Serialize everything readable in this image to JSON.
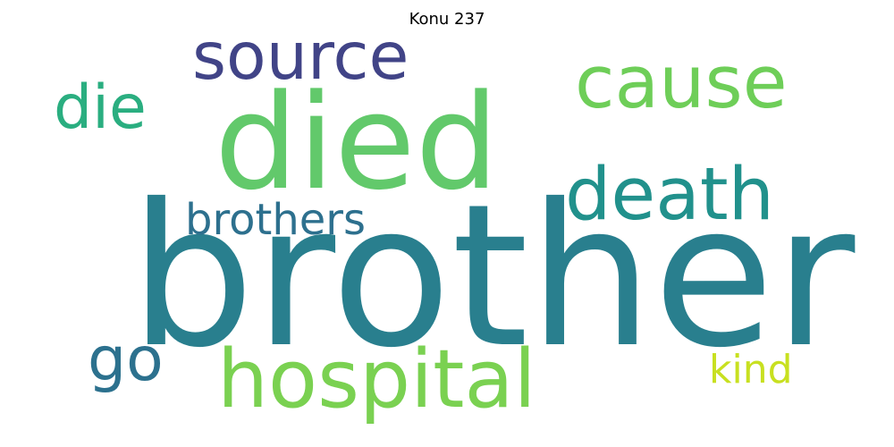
{
  "chart_data": {
    "type": "wordcloud",
    "title": "Konu 237",
    "words": [
      {
        "text": "brother",
        "weight": 1.0,
        "color": "#297f8e"
      },
      {
        "text": "died",
        "weight": 0.67,
        "color": "#62c96b"
      },
      {
        "text": "hospital",
        "weight": 0.41,
        "color": "#7ad151"
      },
      {
        "text": "death",
        "weight": 0.37,
        "color": "#21918c"
      },
      {
        "text": "cause",
        "weight": 0.37,
        "color": "#6ece58"
      },
      {
        "text": "source",
        "weight": 0.33,
        "color": "#414487"
      },
      {
        "text": "die",
        "weight": 0.31,
        "color": "#2aae80"
      },
      {
        "text": "go",
        "weight": 0.31,
        "color": "#2c718e"
      },
      {
        "text": "brothers",
        "weight": 0.22,
        "color": "#2d708e"
      },
      {
        "text": "kind",
        "weight": 0.2,
        "color": "#c8e020"
      }
    ]
  }
}
